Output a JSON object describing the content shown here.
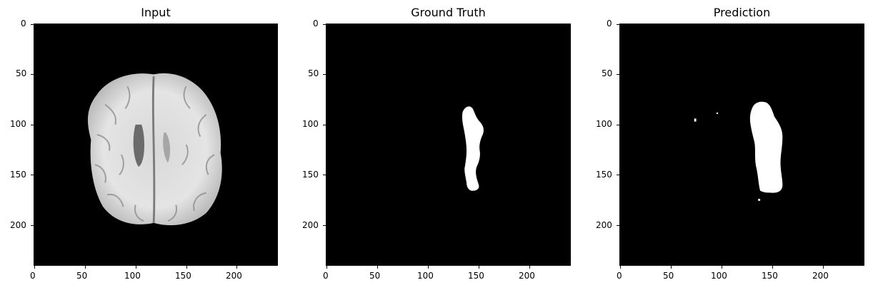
{
  "figure": {
    "panels": [
      {
        "id": "input",
        "title": "Input",
        "image_kind": "mri-axial-brain-slice",
        "xticks": [
          "0",
          "50",
          "100",
          "150",
          "200"
        ],
        "yticks": [
          "0",
          "50",
          "100",
          "150",
          "200"
        ]
      },
      {
        "id": "ground-truth",
        "title": "Ground Truth",
        "image_kind": "binary-segmentation-mask",
        "xticks": [
          "0",
          "50",
          "100",
          "150",
          "200"
        ],
        "yticks": [
          "0",
          "50",
          "100",
          "150",
          "200"
        ]
      },
      {
        "id": "prediction",
        "title": "Prediction",
        "image_kind": "binary-segmentation-mask",
        "xticks": [
          "0",
          "50",
          "100",
          "150",
          "200"
        ],
        "yticks": [
          "0",
          "50",
          "100",
          "150",
          "200"
        ]
      }
    ]
  },
  "colors": {
    "background": "#000000",
    "mask": "#ffffff",
    "brain_light": "#e6e6e6",
    "brain_mid": "#bdbdbd",
    "brain_dark": "#6b6b6b"
  }
}
